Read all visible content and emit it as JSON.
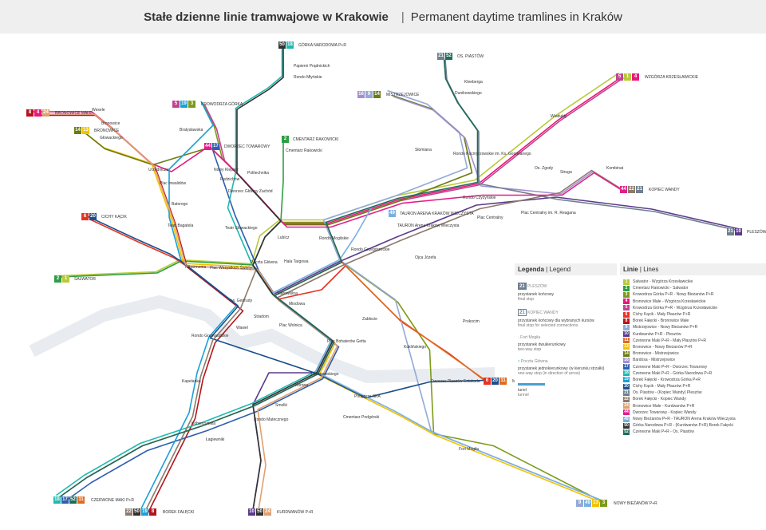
{
  "title": {
    "pl": "Stałe dzienne linie tramwajowe w Krakowie",
    "en": "Permanent daytime tramlines in Kraków"
  },
  "line_colors": {
    "1": "#b9c93a",
    "2": "#2e9e44",
    "3": "#7d9a1c",
    "4": "#e6197d",
    "5": "#c2448e",
    "6": "#e63323",
    "8": "#b5141b",
    "9": "#93a9d6",
    "10": "#5b3a8c",
    "11": "#e06a20",
    "13": "#f2c200",
    "14": "#6b7a12",
    "16": "#a28fd0",
    "17": "#2f5fb0",
    "18": "#20b8b0",
    "19": "#1aa0d8",
    "20": "#1a4f8a",
    "21": "#6e7f8f",
    "22": "#8c7a6a",
    "24": "#e0a070",
    "44": "#e0208a",
    "49": "#7ab0e0",
    "50": "#333333",
    "52": "#1d6b5a"
  },
  "terminals": [
    {
      "name": "GÓRKA NARODOWA P+R",
      "lines": [
        "50",
        "18"
      ]
    },
    {
      "name": "OS. PIASTÓW",
      "lines": [
        "21",
        "52"
      ]
    },
    {
      "name": "MISTRZEJOWICE",
      "lines": [
        "16",
        "9",
        "14"
      ]
    },
    {
      "name": "WZGÓRZA KRZESŁAWICKIE",
      "lines": [
        "5",
        "1",
        "4"
      ]
    },
    {
      "name": "BRONOWICE MAŁE",
      "lines": [
        "8",
        "4",
        "24"
      ]
    },
    {
      "name": "BRONOWICE",
      "lines": [
        "14",
        "13"
      ]
    },
    {
      "name": "KROWODRZA GÓRKA",
      "lines": [
        "5",
        "19",
        "3"
      ]
    },
    {
      "name": "DWORZEC TOWAROWY",
      "lines": [
        "44",
        "17"
      ]
    },
    {
      "name": "CMENTARZ RAKOWICKI",
      "lines": [
        "2"
      ]
    },
    {
      "name": "KOPIEC WANDY",
      "lines": [
        "44",
        "22",
        "21"
      ]
    },
    {
      "name": "TAURON ARENA KRAKÓW WIECZYSTA",
      "lines": [
        "49"
      ]
    },
    {
      "name": "PLESZÓW",
      "lines": [
        "21",
        "10"
      ]
    },
    {
      "name": "CICHY KĄCIK",
      "lines": [
        "6",
        "20"
      ]
    },
    {
      "name": "SALWATOR",
      "lines": [
        "2",
        "1"
      ]
    },
    {
      "name": "MAŁY PŁASZÓW P+R",
      "lines": [
        "6",
        "20",
        "11"
      ]
    },
    {
      "name": "CZERWONE MAKI P+R",
      "lines": [
        "18",
        "17",
        "52",
        "11"
      ]
    },
    {
      "name": "BOREK FAŁĘCKI",
      "lines": [
        "22",
        "50",
        "19",
        "8"
      ]
    },
    {
      "name": "KURDWANÓW P+R",
      "lines": [
        "10",
        "50",
        "24"
      ]
    },
    {
      "name": "NOWY BIEŻANÓW P+R",
      "lines": [
        "9",
        "49",
        "13",
        "3"
      ]
    }
  ],
  "stops": [
    "Wesele",
    "Bronowice",
    "Głowackiego",
    "Urzędnicza",
    "Plac Inwalidów",
    "Batorego",
    "Teatr Bagatela",
    "Filharmonia",
    "Plac Wszystkich Świętych",
    "Teatr Słowackiego",
    "Dworzec Główny Zachód",
    "Politechnika",
    "Lubicz",
    "Rondo Mogilskie",
    "Poczta Główna",
    "Hala Targowa",
    "Starowiślna",
    "Miodowa",
    "św. Gertrudy",
    "Wawel",
    "Stradom",
    "Plac Wolnica",
    "Plac Bohaterów Getta",
    "Rondo Grunwaldzkie",
    "Kapelanka",
    "Limanowskiego",
    "Korona",
    "Smolki",
    "Rondo Matecznego",
    "Podgórze SKA",
    "Łagiewniki",
    "Kobierzyńska",
    "Rondo Grzegórzeckie",
    "Zabłocie",
    "Kuklińskiego",
    "Dworzec Płaszów Estakada",
    "Rondo Czyżyńskie",
    "Plac Centralny im. R. Reagana",
    "Os. Zgody",
    "Struga",
    "Kombinat",
    "Plac Centralny",
    "TAURON Arena Kraków Wieczysta",
    "Ojca Józefa",
    "Prokocim",
    "Cmentarz Podgórski",
    "Słomiana",
    "Rondo Kocmyrzowskie im. Ks. Gorzelanego",
    "Wiadukty",
    "Dunikowskiego",
    "Kleeberga",
    "Papierni Prądnickich",
    "Rondo Młyńskie",
    "Fort Mogiła",
    "Pędzichów",
    "Nowy Kleparz",
    "Bratysławska",
    "Cmentarz Rakowicki"
  ],
  "legend": {
    "title": "Legenda",
    "title_en": "Legend",
    "items": [
      {
        "sample": "21",
        "sample_name": "PLESZÓW",
        "pl": "przystanek końcowy",
        "en": "final stop"
      },
      {
        "sample": "21",
        "sample_name": "KOPIEC WANDY",
        "pl": "przystanek końcowy dla wybranych kursów",
        "en": "final stop for selected connections"
      },
      {
        "sample_name": "Fort Mogiła",
        "pl": "przystanek dwukierunkowy",
        "en": "two-way stop"
      },
      {
        "sample_name": "Poczta Główna",
        "pl": "przystanek jednokierunkowy (w kierunku strzałki)",
        "en": "one-way stop (in direction of arrow)"
      },
      {
        "pl": "tunel",
        "en": "tunnel"
      }
    ]
  },
  "lines_box": {
    "title": "Linie",
    "title_en": "Lines",
    "items": [
      {
        "n": "1",
        "route": "Salwator - Wzgórza Krzesławickie"
      },
      {
        "n": "2",
        "route": "Cmentarz Rakowicki - Salwator"
      },
      {
        "n": "3",
        "route": "Krowodrza Górka P+R - Nowy Bieżanów P+R"
      },
      {
        "n": "4",
        "route": "Bronowice Małe - Wzgórza Krzesławickie"
      },
      {
        "n": "5",
        "route": "Krowodrza Górka P+R - Wzgórza Krzesławickie"
      },
      {
        "n": "6",
        "route": "Cichy Kącik - Mały Płaszów P+R"
      },
      {
        "n": "8",
        "route": "Borek Fałęcki - Bronowice Małe"
      },
      {
        "n": "9",
        "route": "Mistrzejowice - Nowy Bieżanów P+R"
      },
      {
        "n": "10",
        "route": "Kurdwanów P+R - Pleszów"
      },
      {
        "n": "11",
        "route": "Czerwone Maki P+R - Mały Płaszów P+R"
      },
      {
        "n": "13",
        "route": "Bronowice - Nowy Bieżanów P+R"
      },
      {
        "n": "14",
        "route": "Bronowice - Mistrzejowice"
      },
      {
        "n": "16",
        "route": "Bardosa - Mistrzejowice"
      },
      {
        "n": "17",
        "route": "Czerwone Maki P+R - Dworzec Towarowy"
      },
      {
        "n": "18",
        "route": "Czerwone Maki P+R - Górka Narodowa P+R"
      },
      {
        "n": "19",
        "route": "Borek Fałęcki - Krowodrza Górka P+R"
      },
      {
        "n": "20",
        "route": "Cichy Kącik - Mały Płaszów P+R"
      },
      {
        "n": "21",
        "route": "Os. Piastów - (Kopiec Wandy) Pleszów"
      },
      {
        "n": "22",
        "route": "Borek Fałęcki - Kopiec Wandy"
      },
      {
        "n": "24",
        "route": "Bronowice Małe - Kurdwanów P+R"
      },
      {
        "n": "44",
        "route": "Dworzec Towarowy - Kopiec Wandy"
      },
      {
        "n": "49",
        "route": "Nowy Bieżanów P+R - TAURON Arena Kraków Wieczysta"
      },
      {
        "n": "50",
        "route": "Górka Narodowa P+R - (Kurdwanów P+R) Borek Fałęcki"
      },
      {
        "n": "52",
        "route": "Czerwone Maki P+R - Os. Piastów"
      }
    ]
  }
}
